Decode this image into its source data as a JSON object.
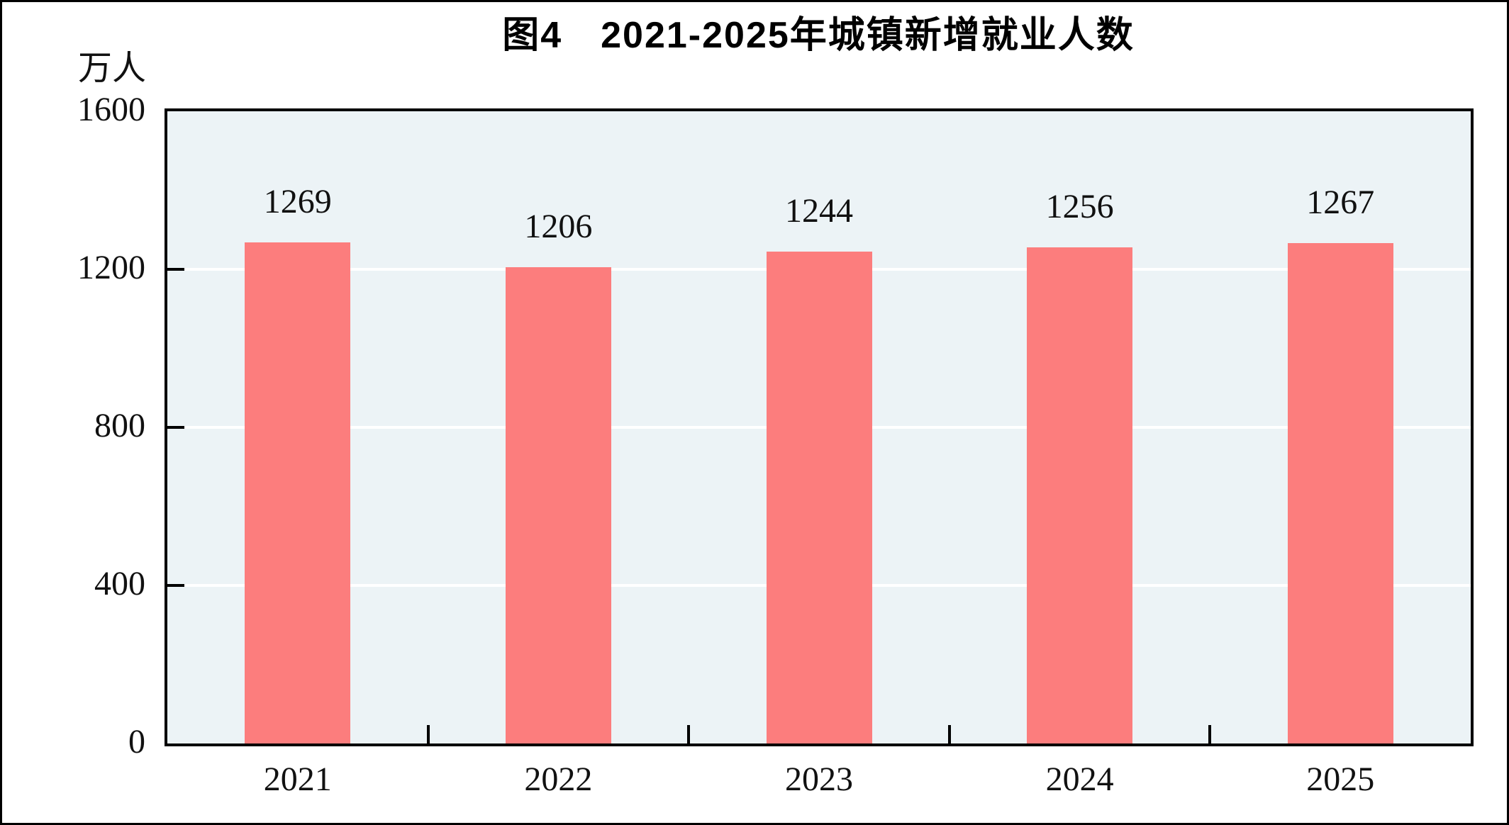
{
  "chart_data": {
    "type": "bar",
    "title": "图4　2021-2025年城镇新增就业人数",
    "unit_label": "万人",
    "categories": [
      "2021",
      "2022",
      "2023",
      "2024",
      "2025"
    ],
    "values": [
      1269,
      1206,
      1244,
      1256,
      1267
    ],
    "ylim": [
      0,
      1600
    ],
    "yticks": [
      0,
      400,
      800,
      1200,
      1600
    ],
    "grid": "horizontal white lines at interior y-ticks",
    "legend_position": "none",
    "bar_color": "#FC7D7D",
    "plot_bg": "#ECF3F6",
    "grid_color": "#FFFFFF",
    "axis_color": "#000000",
    "text_color": "#1A1A1A"
  }
}
